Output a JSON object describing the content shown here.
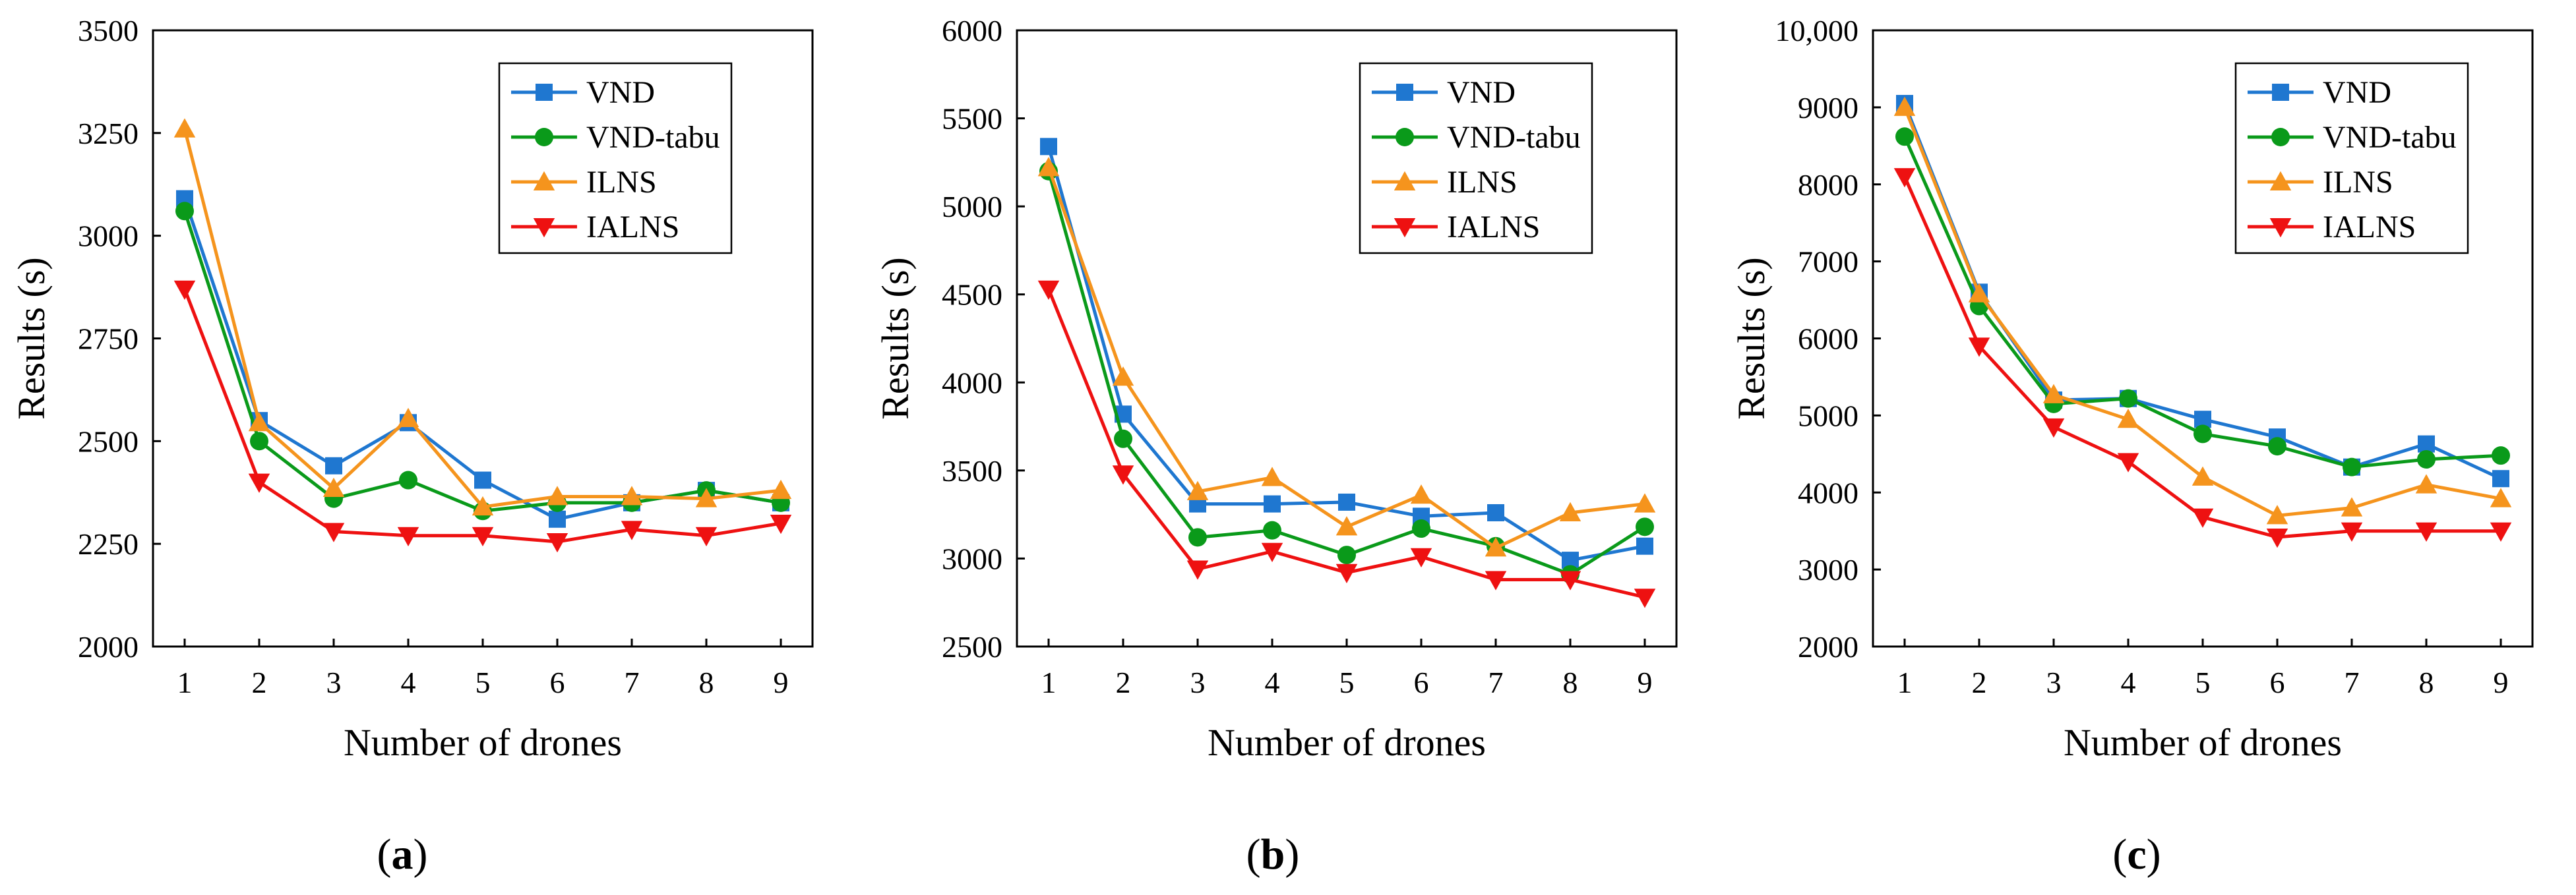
{
  "chart_data": [
    {
      "type": "line",
      "caption": "a",
      "xlabel": "Number of drones",
      "ylabel": "Results (s)",
      "x": [
        1,
        2,
        3,
        4,
        5,
        6,
        7,
        8,
        9
      ],
      "ylim": [
        2000,
        3500
      ],
      "yticks": [
        2000,
        2250,
        2500,
        2750,
        3000,
        3250,
        3500
      ],
      "ytick_labels": [
        "2000",
        "2250",
        "2500",
        "2750",
        "3000",
        "3250",
        "3500"
      ],
      "grid": false,
      "legend_position": "top-right",
      "series": [
        {
          "name": "VND",
          "color": "#1f77d0",
          "marker": "square",
          "values": [
            3090,
            2550,
            2440,
            2545,
            2405,
            2310,
            2350,
            2380,
            2350
          ]
        },
        {
          "name": "VND-tabu",
          "color": "#0a9a1a",
          "marker": "circle",
          "values": [
            3060,
            2500,
            2360,
            2405,
            2330,
            2350,
            2350,
            2380,
            2350
          ]
        },
        {
          "name": "ILNS",
          "color": "#f5941d",
          "marker": "triangle-up",
          "values": [
            3260,
            2545,
            2385,
            2555,
            2340,
            2365,
            2365,
            2360,
            2380
          ]
        },
        {
          "name": "IALNS",
          "color": "#ee1111",
          "marker": "triangle-down",
          "values": [
            2870,
            2400,
            2280,
            2270,
            2270,
            2255,
            2285,
            2270,
            2300
          ]
        }
      ]
    },
    {
      "type": "line",
      "caption": "b",
      "xlabel": "Number of drones",
      "ylabel": "Results (s)",
      "x": [
        1,
        2,
        3,
        4,
        5,
        6,
        7,
        8,
        9
      ],
      "ylim": [
        2500,
        6000
      ],
      "yticks": [
        2500,
        3000,
        3500,
        4000,
        4500,
        5000,
        5500,
        6000
      ],
      "ytick_labels": [
        "2500",
        "3000",
        "3500",
        "4000",
        "4500",
        "5000",
        "5500",
        "6000"
      ],
      "grid": false,
      "legend_position": "top-right",
      "series": [
        {
          "name": "VND",
          "color": "#1f77d0",
          "marker": "square",
          "values": [
            5340,
            3820,
            3310,
            3310,
            3320,
            3240,
            3260,
            2990,
            3070
          ]
        },
        {
          "name": "VND-tabu",
          "color": "#0a9a1a",
          "marker": "circle",
          "values": [
            5200,
            3680,
            3120,
            3160,
            3020,
            3170,
            3070,
            2910,
            3180
          ]
        },
        {
          "name": "ILNS",
          "color": "#f5941d",
          "marker": "triangle-up",
          "values": [
            5220,
            4030,
            3380,
            3460,
            3180,
            3360,
            3060,
            3260,
            3310
          ]
        },
        {
          "name": "IALNS",
          "color": "#ee1111",
          "marker": "triangle-down",
          "values": [
            4530,
            3480,
            2940,
            3040,
            2920,
            3010,
            2880,
            2880,
            2780
          ]
        }
      ]
    },
    {
      "type": "line",
      "caption": "c",
      "xlabel": "Number of drones",
      "ylabel": "Results (s)",
      "x": [
        1,
        2,
        3,
        4,
        5,
        6,
        7,
        8,
        9
      ],
      "ylim": [
        2000,
        10000
      ],
      "yticks": [
        2000,
        3000,
        4000,
        5000,
        6000,
        7000,
        8000,
        9000,
        10000
      ],
      "ytick_labels": [
        "2000",
        "3000",
        "4000",
        "5000",
        "6000",
        "7000",
        "8000",
        "9000",
        "10,000"
      ],
      "grid": false,
      "legend_position": "top-right",
      "series": [
        {
          "name": "VND",
          "color": "#1f77d0",
          "marker": "square",
          "values": [
            9050,
            6600,
            5200,
            5220,
            4950,
            4720,
            4330,
            4630,
            4180
          ]
        },
        {
          "name": "VND-tabu",
          "color": "#0a9a1a",
          "marker": "circle",
          "values": [
            8620,
            6420,
            5150,
            5220,
            4760,
            4600,
            4330,
            4430,
            4480
          ]
        },
        {
          "name": "ILNS",
          "color": "#f5941d",
          "marker": "triangle-up",
          "values": [
            9000,
            6580,
            5270,
            4950,
            4200,
            3700,
            3800,
            4100,
            3920
          ]
        },
        {
          "name": "IALNS",
          "color": "#ee1111",
          "marker": "triangle-down",
          "values": [
            8100,
            5900,
            4850,
            4400,
            3680,
            3420,
            3500,
            3500,
            3500
          ]
        }
      ]
    }
  ]
}
